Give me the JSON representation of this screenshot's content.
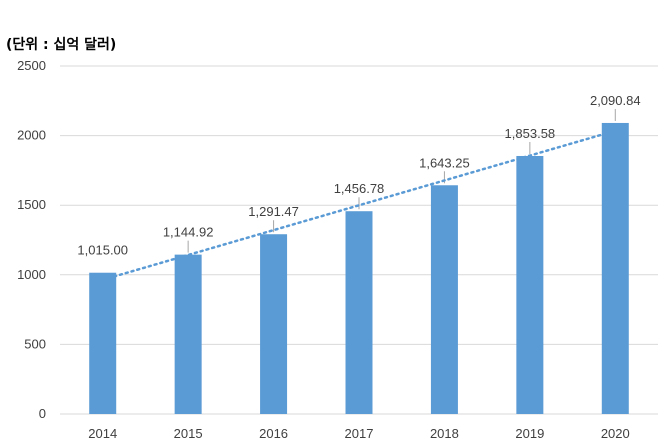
{
  "unit_label": "(단위 : 십억 달러)",
  "colors": {
    "bar": "#5b9bd5",
    "trendline": "#5b9bd5",
    "grid": "#d9d9d9",
    "axis_text": "#404040"
  },
  "chart_data": {
    "type": "bar",
    "title": "",
    "xlabel": "",
    "ylabel": "",
    "categories": [
      "2014",
      "2015",
      "2016",
      "2017",
      "2018",
      "2019",
      "2020"
    ],
    "values": [
      1015.0,
      1144.92,
      1291.47,
      1456.78,
      1643.25,
      1853.58,
      2090.84
    ],
    "data_labels": [
      "1,015.00",
      "1,144.92",
      "1,291.47",
      "1,456.78",
      "1,643.25",
      "1,853.58",
      "2,090.84"
    ],
    "ylim": [
      0,
      2500
    ],
    "yticks": [
      0,
      500,
      1000,
      1500,
      2000,
      2500
    ],
    "grid": true,
    "legend": "none",
    "trendline": {
      "type": "linear",
      "style": "dotted"
    }
  }
}
